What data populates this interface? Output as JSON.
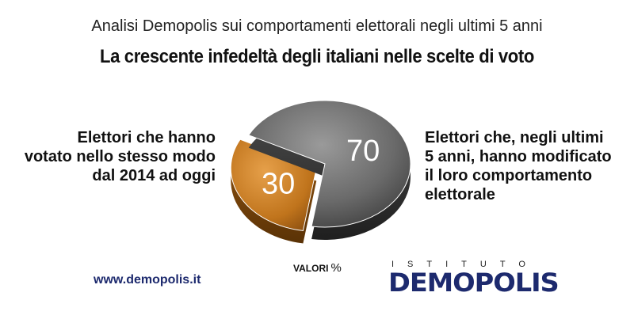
{
  "header": {
    "subtitle": "Analisi Demopolis sui comportamenti elettorali negli ultimi 5 anni",
    "title": "La crescente infedeltà degli italiani nelle scelte di voto"
  },
  "labels": {
    "left": [
      "Elettori che hanno",
      "votato nello stesso modo",
      "dal 2014 ad oggi"
    ],
    "right": [
      "Elettori che, negli ultimi",
      "5 anni, hanno modificato",
      "il loro comportamento",
      "elettorale"
    ]
  },
  "unit_label": "VALORI",
  "unit_symbol": "%",
  "website": "www.demopolis.it",
  "logo": {
    "top_text": "ISTITUTO",
    "brand": "DEMOPOLIS"
  },
  "chart_data": {
    "type": "pie",
    "style": "3d exploded",
    "slices": [
      {
        "label": "Elettori che hanno votato nello stesso modo dal 2014 ad oggi",
        "value": 30,
        "color": "#c67a1f"
      },
      {
        "label": "Elettori che, negli ultimi 5 anni, hanno modificato il loro comportamento elettorale",
        "value": 70,
        "color": "#6d6d6d"
      }
    ],
    "data_labels": [
      "30",
      "70"
    ],
    "unit": "%"
  }
}
